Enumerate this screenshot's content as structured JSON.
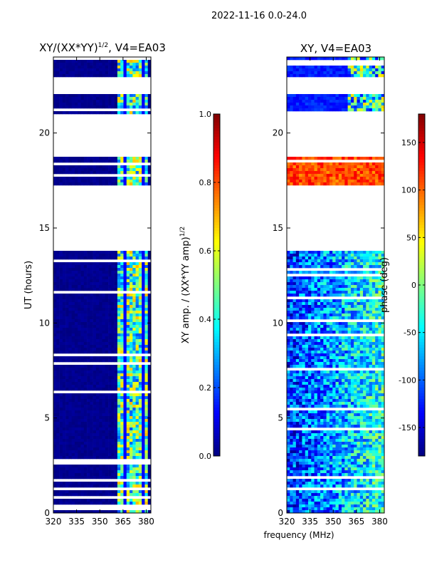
{
  "figure_title": "2022-11-16 0.0-24.0",
  "shared_xlabel": "frequency (MHz)",
  "chart_data": [
    {
      "type": "heatmap",
      "title": "XY/(XX*YY)",
      "title_exp": "1/2",
      "title_tail": ", V4=EA03",
      "ylabel": "UT (hours)",
      "xlim": [
        320,
        383
      ],
      "ylim": [
        0,
        24
      ],
      "xticks": [
        320,
        335,
        350,
        365,
        380
      ],
      "yticks": [
        0,
        5,
        10,
        15,
        20
      ],
      "colorbar": {
        "label": "XY amp. / (XX*YY amp)",
        "label_exp": "1/2",
        "range": [
          0.0,
          1.0
        ],
        "ticks": [
          "0.0",
          "0.2",
          "0.4",
          "0.6",
          "0.8",
          "1.0"
        ],
        "tick_values": [
          0.0,
          0.2,
          0.4,
          0.6,
          0.8,
          1.0
        ]
      },
      "data_gaps_hours": [
        [
          13.85,
          17.2
        ],
        [
          18.7,
          20.95
        ],
        [
          22.0,
          23.0
        ],
        [
          0.35,
          0.5
        ],
        [
          2.5,
          2.7
        ]
      ],
      "active_band_mhz": [
        362,
        382
      ],
      "typical_values": {
        "background": 0.0,
        "band": 0.45
      }
    },
    {
      "type": "heatmap",
      "title": "XY, V4=EA03",
      "xlim": [
        320,
        383
      ],
      "ylim": [
        0,
        24
      ],
      "xticks": [
        320,
        335,
        350,
        365,
        380
      ],
      "yticks": [
        0,
        5,
        10,
        15,
        20
      ],
      "colorbar": {
        "label": "phase (deg)",
        "range": [
          -180,
          180
        ],
        "ticks": [
          "-150",
          "-100",
          "-50",
          "0",
          "50",
          "100",
          "150"
        ],
        "tick_values": [
          -150,
          -100,
          -50,
          0,
          50,
          100,
          150
        ]
      },
      "data_gaps_hours": [
        [
          13.85,
          17.2
        ],
        [
          18.7,
          20.95
        ],
        [
          22.0,
          23.0
        ]
      ],
      "typical_values": {
        "early_hours_deg": -120,
        "hours_17_to_18_5_deg": 110
      }
    }
  ]
}
